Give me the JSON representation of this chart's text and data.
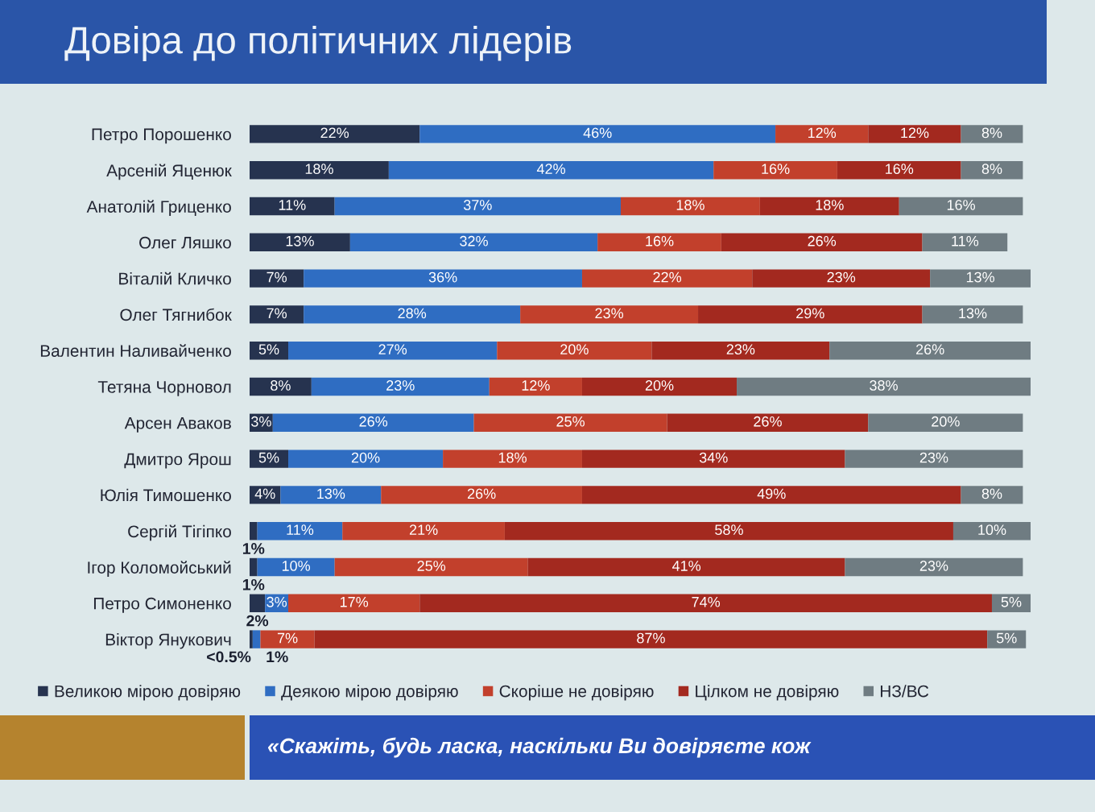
{
  "chart_data": {
    "type": "bar",
    "orientation": "horizontal",
    "stacked": true,
    "title": "Довіра до політичних лідерів",
    "categories": [
      "Петро Порошенко",
      "Арсеній Яценюк",
      "Анатолій Гриценко",
      "Олег Ляшко",
      "Віталій Кличко",
      "Олег Тягнибок",
      "Валентин Наливайченко",
      "Тетяна Чорновол",
      "Арсен Аваков",
      "Дмитро Ярош",
      "Юлія Тимошенко",
      "Сергій Тігіпко",
      "Ігор Коломойський",
      "Петро Симоненко",
      "Віктор Янукович"
    ],
    "series": [
      {
        "name": "Великою мірою довіряю",
        "color": "#26334f",
        "values": [
          22,
          18,
          11,
          13,
          7,
          7,
          5,
          8,
          3,
          5,
          4,
          1,
          1,
          2,
          0.4
        ],
        "value_labels": [
          "22%",
          "18%",
          "11%",
          "13%",
          "7%",
          "7%",
          "5%",
          "8%",
          "3%",
          "5%",
          "4%",
          "1%",
          "1%",
          "2%",
          "<0.5%"
        ]
      },
      {
        "name": "Деякою мірою довіряю",
        "color": "#2f6dc2",
        "values": [
          46,
          42,
          37,
          32,
          36,
          28,
          27,
          23,
          26,
          20,
          13,
          11,
          10,
          3,
          1
        ],
        "value_labels": [
          "46%",
          "42%",
          "37%",
          "32%",
          "36%",
          "28%",
          "27%",
          "23%",
          "26%",
          "20%",
          "13%",
          "11%",
          "10%",
          "3%",
          "1%"
        ]
      },
      {
        "name": "Скоріше не довіряю",
        "color": "#c2402c",
        "values": [
          12,
          16,
          18,
          16,
          22,
          23,
          20,
          12,
          25,
          18,
          26,
          21,
          25,
          17,
          7
        ],
        "value_labels": [
          "12%",
          "16%",
          "18%",
          "16%",
          "22%",
          "23%",
          "20%",
          "12%",
          "25%",
          "18%",
          "26%",
          "21%",
          "25%",
          "17%",
          "7%"
        ]
      },
      {
        "name": "Цілком не довіряю",
        "color": "#a3291f",
        "values": [
          12,
          16,
          18,
          26,
          23,
          29,
          23,
          20,
          26,
          34,
          49,
          58,
          41,
          74,
          87
        ],
        "value_labels": [
          "12%",
          "16%",
          "18%",
          "26%",
          "23%",
          "29%",
          "23%",
          "20%",
          "26%",
          "34%",
          "49%",
          "58%",
          "41%",
          "74%",
          "87%"
        ]
      },
      {
        "name": "НЗ/ВС",
        "color": "#6f7c82",
        "values": [
          8,
          8,
          16,
          11,
          13,
          13,
          26,
          38,
          20,
          23,
          8,
          10,
          23,
          5,
          5
        ],
        "value_labels": [
          "8%",
          "8%",
          "16%",
          "11%",
          "13%",
          "13%",
          "26%",
          "38%",
          "20%",
          "23%",
          "8%",
          "10%",
          "23%",
          "5%",
          "5%"
        ]
      }
    ],
    "legend": "bottom",
    "tick_labels": "y",
    "annotations": [
      "«Скажіть, будь ласка, наскільки Ви довіряєте кож"
    ]
  }
}
